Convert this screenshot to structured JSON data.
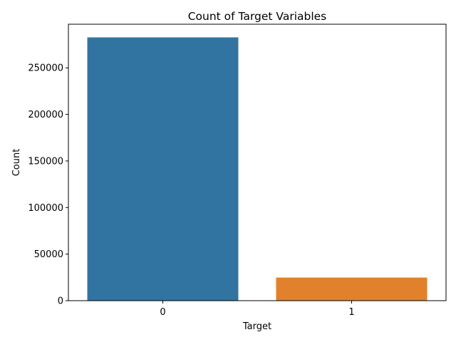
{
  "chart_data": {
    "type": "bar",
    "title": "Count of Target Variables",
    "xlabel": "Target",
    "ylabel": "Count",
    "categories": [
      "0",
      "1"
    ],
    "values": [
      282686,
      24825
    ],
    "colors": [
      "#3274a1",
      "#e1812c"
    ],
    "ylim": [
      0,
      296820
    ],
    "yticks": [
      0,
      50000,
      100000,
      150000,
      200000,
      250000
    ],
    "grid": false,
    "legend": "none"
  }
}
